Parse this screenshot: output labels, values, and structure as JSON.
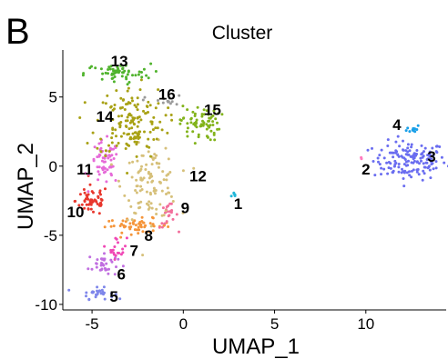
{
  "chart_data": {
    "type": "scatter",
    "panel_label": "B",
    "title": "Cluster",
    "xlabel": "UMAP_1",
    "ylabel": "UMAP_2",
    "xlim": [
      -6.6,
      14.4
    ],
    "ylim": [
      -10.4,
      8.4
    ],
    "x_ticks": [
      -5,
      0,
      5,
      10
    ],
    "y_ticks": [
      -10,
      -5,
      0,
      5
    ],
    "x_tick_labels": [
      "-5",
      "0",
      "5",
      "10"
    ],
    "y_tick_labels": [
      "-10",
      "-5",
      "0",
      "5"
    ],
    "grid": false,
    "legend": "none",
    "series": [
      {
        "name": "1",
        "color": "#1fb6d8",
        "center": [
          2.8,
          -2.1
        ],
        "spread": [
          0.08,
          0.12
        ],
        "points": 6
      },
      {
        "name": "2",
        "color": "#ff7bbf",
        "center": [
          9.8,
          0.6
        ],
        "spread": [
          0.05,
          0.05
        ],
        "points": 3
      },
      {
        "name": "3",
        "color": "#6a6df0",
        "center": [
          12.4,
          0.4
        ],
        "spread": [
          1.0,
          0.7
        ],
        "points": 150
      },
      {
        "name": "4",
        "color": "#1aa0e8",
        "center": [
          12.6,
          2.7
        ],
        "spread": [
          0.18,
          0.15
        ],
        "points": 12
      },
      {
        "name": "5",
        "color": "#7e86ea",
        "center": [
          -4.7,
          -9.2
        ],
        "spread": [
          0.45,
          0.2
        ],
        "points": 30
      },
      {
        "name": "6",
        "color": "#c06ee0",
        "center": [
          -4.4,
          -7.1
        ],
        "spread": [
          0.4,
          0.45
        ],
        "points": 35
      },
      {
        "name": "7",
        "color": "#f047b5",
        "center": [
          -3.6,
          -5.9
        ],
        "spread": [
          0.25,
          0.4
        ],
        "points": 20
      },
      {
        "name": "8",
        "color": "#f5953a",
        "center": [
          -2.5,
          -4.3
        ],
        "spread": [
          0.9,
          0.25
        ],
        "points": 55
      },
      {
        "name": "9",
        "color": "#f26f9c",
        "center": [
          -0.8,
          -3.6
        ],
        "spread": [
          0.25,
          0.45
        ],
        "points": 22
      },
      {
        "name": "10",
        "color": "#e8372d",
        "center": [
          -5.0,
          -2.5
        ],
        "spread": [
          0.45,
          0.55
        ],
        "points": 55
      },
      {
        "name": "11",
        "color": "#e66ad8",
        "center": [
          -4.3,
          0.2
        ],
        "spread": [
          0.4,
          0.8
        ],
        "points": 60
      },
      {
        "name": "12",
        "color": "#d6c07a",
        "center": [
          -1.8,
          -1.2
        ],
        "spread": [
          0.75,
          1.3
        ],
        "points": 110
      },
      {
        "name": "13",
        "color": "#4fb32c",
        "center": [
          -3.6,
          6.7
        ],
        "spread": [
          0.9,
          0.35
        ],
        "points": 60
      },
      {
        "name": "14",
        "color": "#a8a114",
        "center": [
          -2.9,
          3.2
        ],
        "spread": [
          0.95,
          1.3
        ],
        "points": 150
      },
      {
        "name": "15",
        "color": "#82b31b",
        "center": [
          0.9,
          3.1
        ],
        "spread": [
          0.55,
          0.65
        ],
        "points": 70
      },
      {
        "name": "16",
        "color": "#9a9a9a",
        "center": [
          -1.0,
          4.7
        ],
        "spread": [
          0.55,
          0.2
        ],
        "points": 15
      }
    ],
    "cluster_labels": [
      {
        "text": "1",
        "x": 3.0,
        "y": -2.7
      },
      {
        "text": "2",
        "x": 10.0,
        "y": -0.2
      },
      {
        "text": "3",
        "x": 13.6,
        "y": 0.7
      },
      {
        "text": "4",
        "x": 11.7,
        "y": 3.0
      },
      {
        "text": "5",
        "x": -3.8,
        "y": -9.4
      },
      {
        "text": "6",
        "x": -3.4,
        "y": -7.8
      },
      {
        "text": "7",
        "x": -2.7,
        "y": -6.1
      },
      {
        "text": "8",
        "x": -1.9,
        "y": -5.0
      },
      {
        "text": "9",
        "x": 0.1,
        "y": -3.0
      },
      {
        "text": "10",
        "x": -5.9,
        "y": -3.3
      },
      {
        "text": "11",
        "x": -5.4,
        "y": -0.2
      },
      {
        "text": "12",
        "x": 0.8,
        "y": -0.7
      },
      {
        "text": "13",
        "x": -3.5,
        "y": 7.6
      },
      {
        "text": "14",
        "x": -4.3,
        "y": 3.6
      },
      {
        "text": "15",
        "x": 1.6,
        "y": 4.1
      },
      {
        "text": "16",
        "x": -0.9,
        "y": 5.2
      }
    ]
  }
}
